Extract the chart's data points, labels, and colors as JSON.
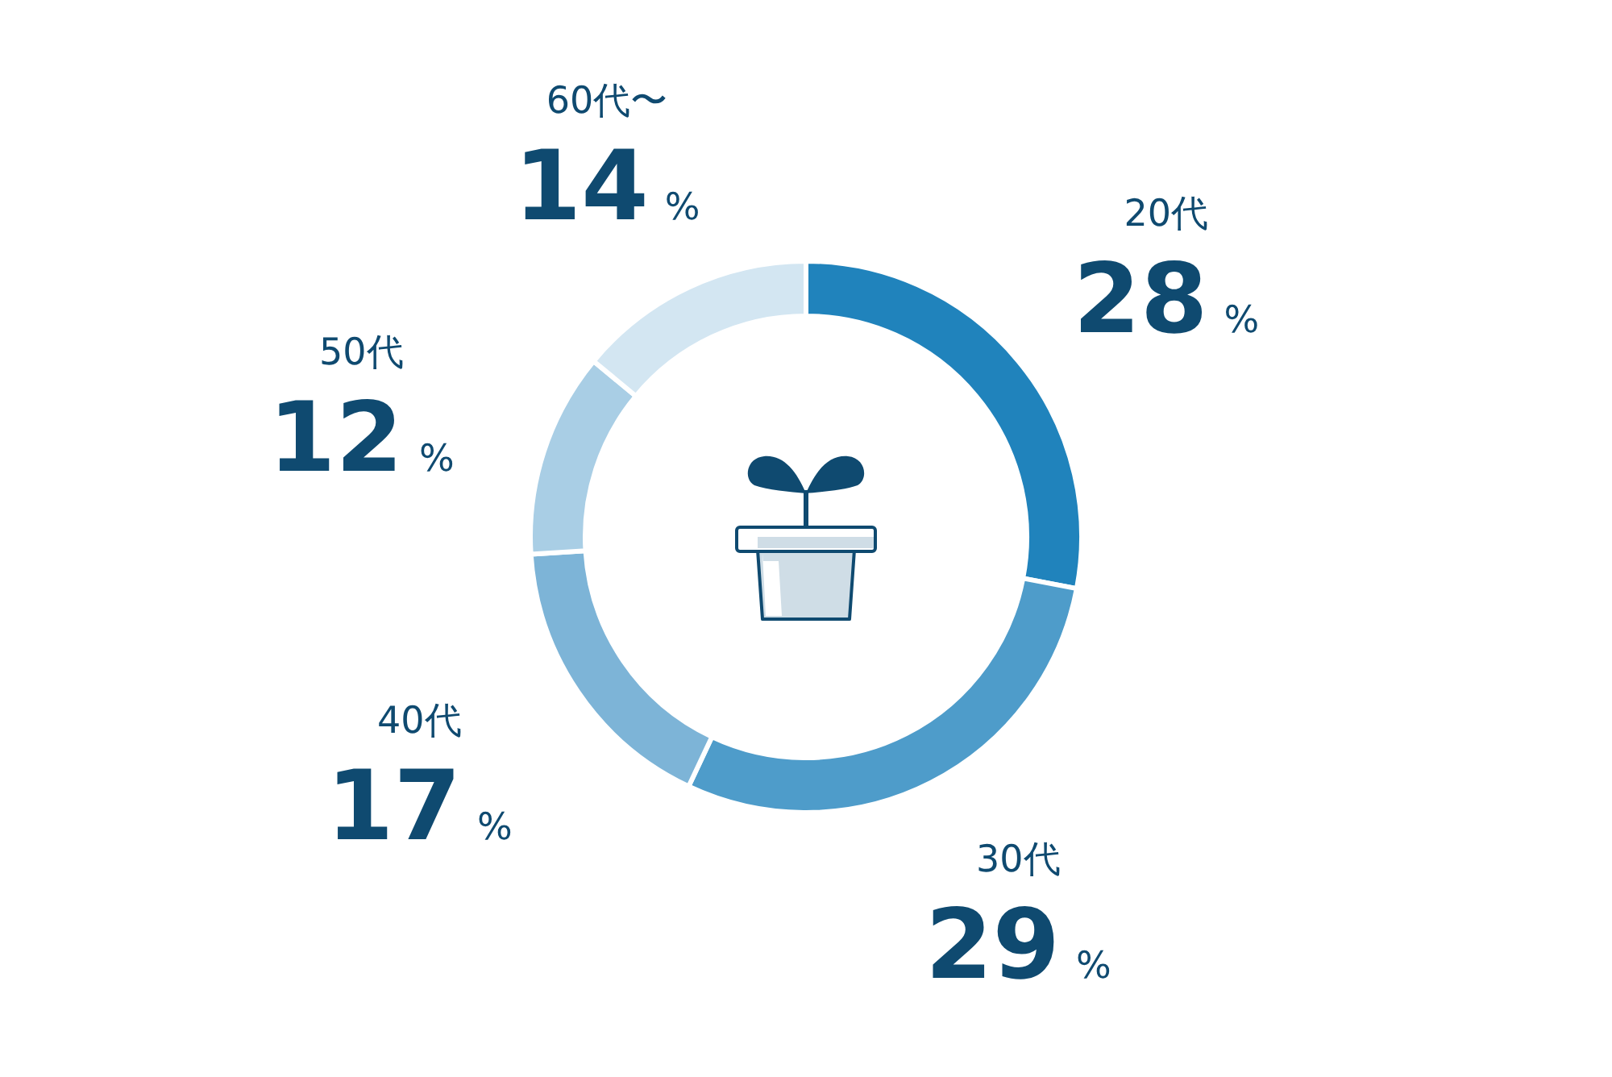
{
  "chart_data": {
    "type": "donut",
    "categories": [
      "20代",
      "30代",
      "40代",
      "50代",
      "60代〜"
    ],
    "values": [
      28,
      29,
      17,
      12,
      14
    ],
    "colors": [
      "#2083bc",
      "#4e9cca",
      "#7db4d7",
      "#a9cee5",
      "#d3e6f2"
    ],
    "value_labels": [
      "28%",
      "29%",
      "17%",
      "12%",
      "14%"
    ]
  }
}
